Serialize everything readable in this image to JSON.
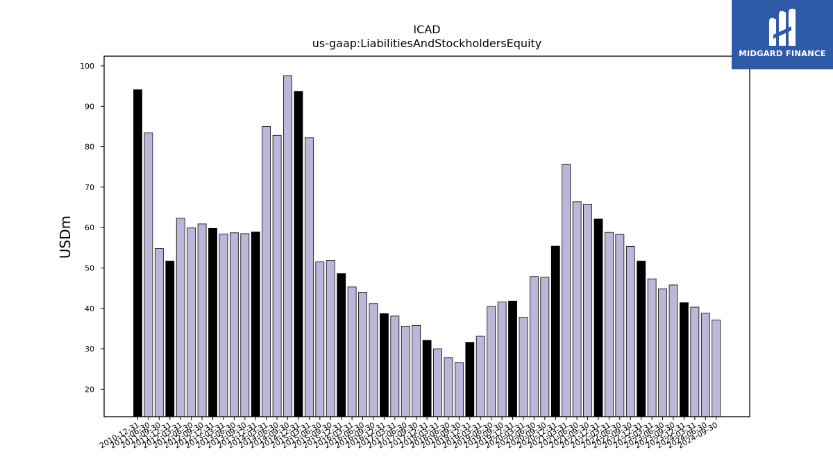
{
  "brand": {
    "name": "MIDGARD FINANCE",
    "bg_color": "#2f5aa8"
  },
  "chart_data": {
    "type": "bar",
    "title": "ICAD",
    "subtitle": "us-gaap:LiabilitiesAndStockholdersEquity",
    "xlabel": "",
    "ylabel": "USDm",
    "ylim": [
      13.2,
      102.4
    ],
    "yticks": [
      20,
      30,
      40,
      50,
      60,
      70,
      80,
      90,
      100
    ],
    "grid": false,
    "colors": {
      "annual": "#000000",
      "quarterly": "#bcb6d8",
      "edge": "#000000"
    },
    "categories": [
      "2010-12-31",
      "2011-06-30",
      "2011-09-30",
      "2011-12-31",
      "2012-03-31",
      "2012-06-30",
      "2012-09-30",
      "2012-12-31",
      "2013-03-31",
      "2013-06-30",
      "2013-09-30",
      "2013-12-31",
      "2014-03-31",
      "2014-06-30",
      "2014-09-30",
      "2014-12-31",
      "2015-03-31",
      "2015-06-30",
      "2015-09-30",
      "2015-12-31",
      "2016-03-31",
      "2016-06-30",
      "2016-09-30",
      "2016-12-31",
      "2017-03-31",
      "2017-06-30",
      "2017-09-30",
      "2017-12-31",
      "2018-03-31",
      "2018-06-30",
      "2018-09-30",
      "2018-12-31",
      "2019-03-31",
      "2019-06-30",
      "2019-09-30",
      "2019-12-31",
      "2020-03-31",
      "2020-06-30",
      "2020-09-30",
      "2020-12-31",
      "2021-03-31",
      "2021-06-30",
      "2021-09-30",
      "2021-12-31",
      "2022-03-31",
      "2022-06-30",
      "2022-09-30",
      "2022-12-31",
      "2023-03-31",
      "2023-06-30",
      "2023-09-30",
      "2023-12-31",
      "2024-03-31",
      "2024-06-30",
      "2024-09-30"
    ],
    "values": [
      94.1,
      83.4,
      54.8,
      51.7,
      62.3,
      59.9,
      60.9,
      59.8,
      58.4,
      58.7,
      58.5,
      58.9,
      85.0,
      82.8,
      97.6,
      93.7,
      82.2,
      51.5,
      51.9,
      48.6,
      45.3,
      44.0,
      41.2,
      38.7,
      38.1,
      35.6,
      35.8,
      32.1,
      30.0,
      27.8,
      26.6,
      31.6,
      33.1,
      40.5,
      41.6,
      41.8,
      37.8,
      47.9,
      47.7,
      55.4,
      75.6,
      66.4,
      65.8,
      62.1,
      58.8,
      58.3,
      55.3,
      51.7,
      47.3,
      44.8,
      45.8,
      41.4,
      40.3,
      38.8,
      37.1
    ],
    "annual_flags": [
      1,
      0,
      0,
      1,
      0,
      0,
      0,
      1,
      0,
      0,
      0,
      1,
      0,
      0,
      0,
      1,
      0,
      0,
      0,
      1,
      0,
      0,
      0,
      1,
      0,
      0,
      0,
      1,
      0,
      0,
      0,
      1,
      0,
      0,
      0,
      1,
      0,
      0,
      0,
      1,
      0,
      0,
      0,
      1,
      0,
      0,
      0,
      1,
      0,
      0,
      0,
      1,
      0,
      0,
      0
    ]
  }
}
